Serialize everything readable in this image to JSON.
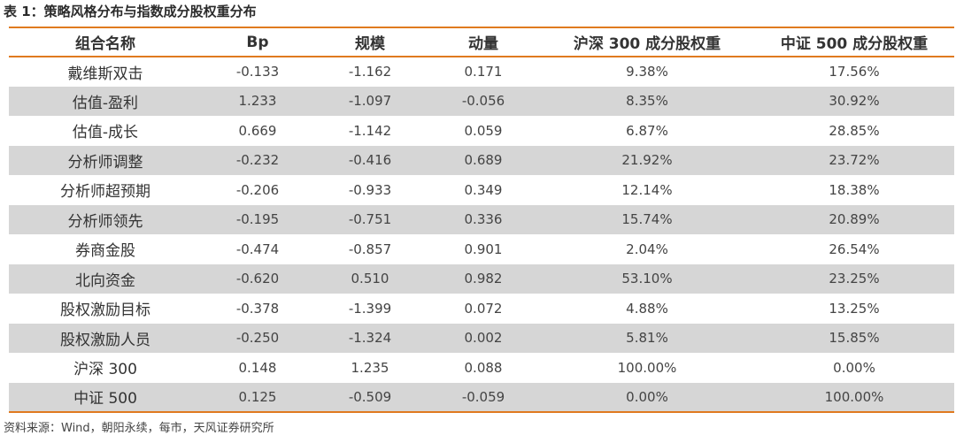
{
  "caption": "表 1：策略风格分布与指数成分股权重分布",
  "table": {
    "headers": [
      "组合名称",
      "Bp",
      "规模",
      "动量",
      "沪深 300 成分股权重",
      "中证 500 成分股权重"
    ],
    "rows": [
      [
        "戴维斯双击",
        "-0.133",
        "-1.162",
        "0.171",
        "9.38%",
        "17.56%"
      ],
      [
        "估值-盈利",
        "1.233",
        "-1.097",
        "-0.056",
        "8.35%",
        "30.92%"
      ],
      [
        "估值-成长",
        "0.669",
        "-1.142",
        "0.059",
        "6.87%",
        "28.85%"
      ],
      [
        "分析师调整",
        "-0.232",
        "-0.416",
        "0.689",
        "21.92%",
        "23.72%"
      ],
      [
        "分析师超预期",
        "-0.206",
        "-0.933",
        "0.349",
        "12.14%",
        "18.38%"
      ],
      [
        "分析师领先",
        "-0.195",
        "-0.751",
        "0.336",
        "15.74%",
        "20.89%"
      ],
      [
        "券商金股",
        "-0.474",
        "-0.857",
        "0.901",
        "2.04%",
        "26.54%"
      ],
      [
        "北向资金",
        "-0.620",
        "0.510",
        "0.982",
        "53.10%",
        "23.25%"
      ],
      [
        "股权激励目标",
        "-0.378",
        "-1.399",
        "0.072",
        "4.88%",
        "13.25%"
      ],
      [
        "股权激励人员",
        "-0.250",
        "-1.324",
        "0.002",
        "5.81%",
        "15.85%"
      ],
      [
        "沪深 300",
        "0.148",
        "1.235",
        "0.088",
        "100.00%",
        "0.00%"
      ],
      [
        "中证 500",
        "0.125",
        "-0.509",
        "-0.059",
        "0.00%",
        "100.00%"
      ]
    ]
  },
  "source": "资料来源：Wind，朝阳永续，每市，天风证券研究所",
  "colors": {
    "accent": "#e07a1f",
    "shade": "#d6d6d6"
  }
}
